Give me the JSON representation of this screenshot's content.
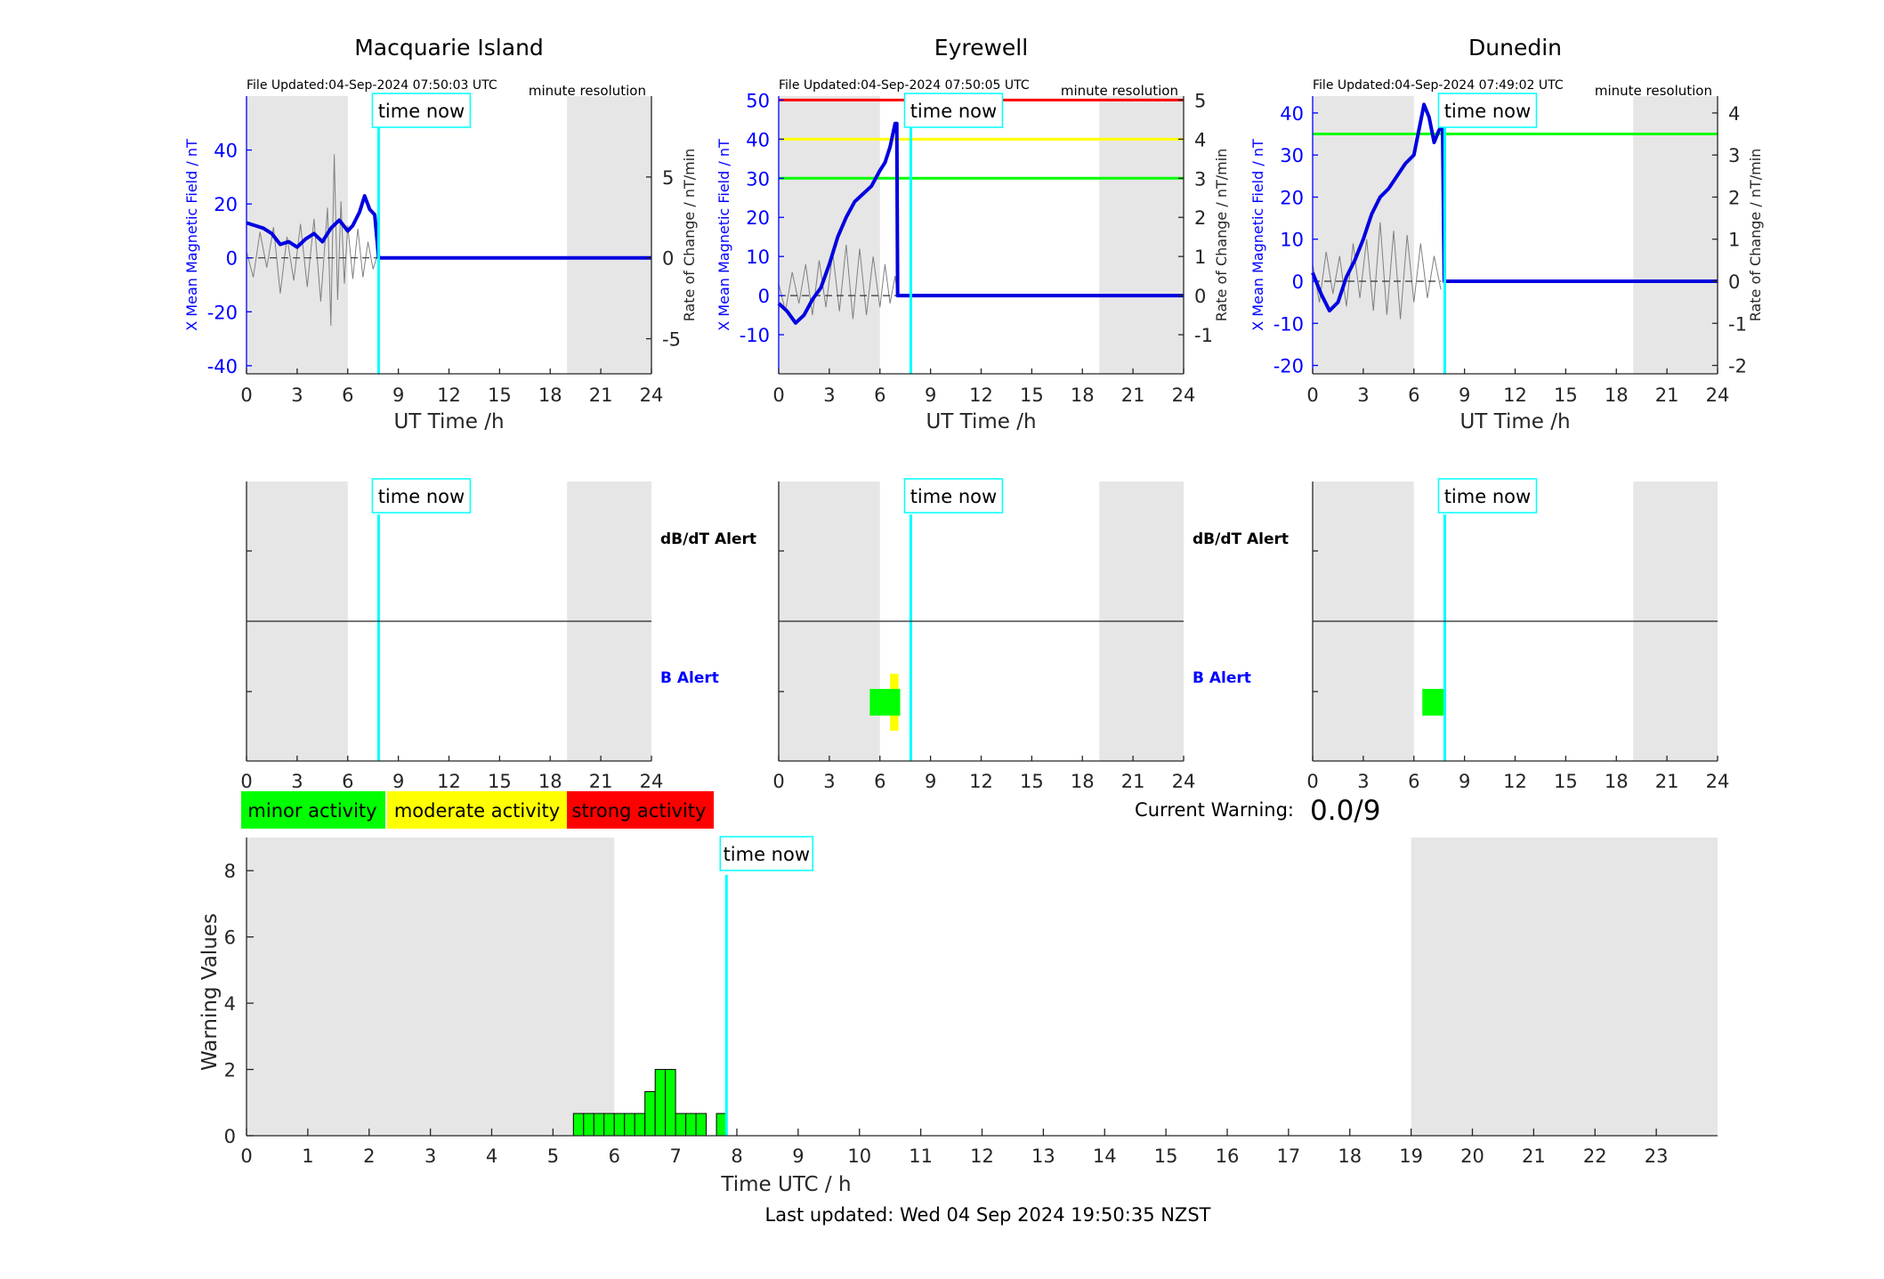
{
  "chart_data": [
    {
      "type": "line",
      "title": "Macquarie Island",
      "file_updated": "File Updated:04-Sep-2024 07:50:03 UTC",
      "resolution": "minute resolution",
      "time_now_label": "time now",
      "time_now": 7.83,
      "xlabel": "UT Time /h",
      "ylabel": "X Mean Magnetic Field / nT",
      "y2label": "Rate of Change / nT/min",
      "xlim": [
        0,
        24
      ],
      "xticks": [
        0,
        3,
        6,
        9,
        12,
        15,
        18,
        21,
        24
      ],
      "ylim": [
        -43,
        60
      ],
      "yticks": [
        -40,
        -20,
        0,
        20,
        40
      ],
      "y2lim": [
        -7.17,
        10
      ],
      "y2ticks": [
        -5,
        0,
        5
      ],
      "night_shading": [
        [
          0,
          6
        ],
        [
          19,
          24
        ]
      ],
      "thresholds": [],
      "series": [
        {
          "role": "field",
          "color": "#0000e0",
          "x": [
            0,
            0.5,
            1,
            1.5,
            2,
            2.5,
            3,
            3.5,
            4,
            4.5,
            5,
            5.5,
            6,
            6.3,
            6.7,
            7,
            7.3,
            7.6,
            7.83,
            8,
            24
          ],
          "y": [
            13,
            12,
            11,
            9,
            5,
            6,
            4,
            7,
            9,
            6,
            11,
            14,
            10,
            12,
            17,
            23,
            18,
            16,
            0,
            0,
            0
          ]
        },
        {
          "role": "rate",
          "color": "#808080",
          "x": [
            0,
            0.4,
            0.8,
            1.2,
            1.6,
            2,
            2.4,
            2.8,
            3.2,
            3.6,
            4,
            4.4,
            4.8,
            5.0,
            5.2,
            5.4,
            5.6,
            5.8,
            6,
            6.3,
            6.6,
            6.9,
            7.2,
            7.5,
            7.8
          ],
          "y": [
            0.4,
            -1.2,
            1.6,
            -0.6,
            1.9,
            -2.2,
            1.3,
            -1.4,
            2.1,
            -1.8,
            2.4,
            -2.7,
            3.1,
            -4.2,
            6.4,
            -2.6,
            3.5,
            -1.6,
            2.0,
            -1.3,
            1.8,
            -1.2,
            1.0,
            -0.7,
            0.3
          ]
        }
      ]
    },
    {
      "type": "line",
      "title": "Eyrewell",
      "file_updated": "File Updated:04-Sep-2024 07:50:05 UTC",
      "resolution": "minute resolution",
      "time_now_label": "time now",
      "time_now": 7.83,
      "xlabel": "UT Time /h",
      "ylabel": "X Mean Magnetic Field / nT",
      "y2label": "Rate of Change / nT/min",
      "xlim": [
        0,
        24
      ],
      "xticks": [
        0,
        3,
        6,
        9,
        12,
        15,
        18,
        21,
        24
      ],
      "ylim": [
        -20,
        51
      ],
      "yticks": [
        -10,
        0,
        10,
        20,
        30,
        40,
        50
      ],
      "y2lim": [
        -2,
        5.1
      ],
      "y2ticks": [
        -1,
        0,
        1,
        2,
        3,
        4,
        5
      ],
      "night_shading": [
        [
          0,
          6
        ],
        [
          19,
          24
        ]
      ],
      "thresholds": [
        {
          "value": 50,
          "color": "#ff0000"
        },
        {
          "value": 40,
          "color": "#ffff00"
        },
        {
          "value": 30,
          "color": "#00ff00"
        }
      ],
      "series": [
        {
          "role": "field",
          "color": "#0000e0",
          "x": [
            0,
            0.5,
            1,
            1.5,
            2,
            2.5,
            3,
            3.5,
            4,
            4.5,
            5,
            5.5,
            6,
            6.3,
            6.6,
            6.9,
            7.0,
            7.05,
            24
          ],
          "y": [
            -2,
            -4,
            -7,
            -5,
            -1,
            2,
            8,
            15,
            20,
            24,
            26,
            28,
            32,
            34,
            38,
            44,
            44,
            0,
            0
          ]
        },
        {
          "role": "rate",
          "color": "#808080",
          "x": [
            0,
            0.4,
            0.8,
            1.2,
            1.6,
            2,
            2.4,
            2.8,
            3.2,
            3.6,
            4,
            4.4,
            4.8,
            5.2,
            5.6,
            6,
            6.3,
            6.6,
            6.9,
            7.0
          ],
          "y": [
            0.3,
            -0.4,
            0.6,
            -0.2,
            0.8,
            -0.5,
            0.9,
            -0.3,
            1.1,
            -0.4,
            1.3,
            -0.6,
            1.2,
            -0.5,
            1.0,
            -0.3,
            0.8,
            -0.2,
            0.5,
            0.1
          ]
        }
      ]
    },
    {
      "type": "line",
      "title": "Dunedin",
      "file_updated": "File Updated:04-Sep-2024 07:49:02 UTC",
      "resolution": "minute resolution",
      "time_now_label": "time now",
      "time_now": 7.83,
      "xlabel": "UT Time /h",
      "ylabel": "X Mean Magnetic Field / nT",
      "y2label": "Rate of Change / nT/min",
      "xlim": [
        0,
        24
      ],
      "xticks": [
        0,
        3,
        6,
        9,
        12,
        15,
        18,
        21,
        24
      ],
      "ylim": [
        -22,
        44
      ],
      "yticks": [
        -20,
        -10,
        0,
        10,
        20,
        30,
        40
      ],
      "y2lim": [
        -2.2,
        4.4
      ],
      "y2ticks": [
        -2,
        -1,
        0,
        1,
        2,
        3,
        4
      ],
      "night_shading": [
        [
          0,
          6
        ],
        [
          19,
          24
        ]
      ],
      "thresholds": [
        {
          "value": 35,
          "color": "#00ff00"
        }
      ],
      "series": [
        {
          "role": "field",
          "color": "#0000e0",
          "x": [
            0,
            0.5,
            1,
            1.5,
            2,
            2.5,
            3,
            3.5,
            4,
            4.5,
            5,
            5.5,
            6,
            6.3,
            6.6,
            6.9,
            7.2,
            7.5,
            7.7,
            7.8,
            24
          ],
          "y": [
            2,
            -3,
            -7,
            -5,
            1,
            5,
            10,
            16,
            20,
            22,
            25,
            28,
            30,
            36,
            42,
            39,
            33,
            36,
            37,
            0,
            0
          ]
        },
        {
          "role": "rate",
          "color": "#808080",
          "x": [
            0,
            0.4,
            0.8,
            1.2,
            1.6,
            2,
            2.4,
            2.8,
            3.2,
            3.6,
            4,
            4.4,
            4.8,
            5.2,
            5.6,
            6,
            6.4,
            6.8,
            7.2,
            7.6
          ],
          "y": [
            0.4,
            -0.5,
            0.7,
            -0.3,
            0.6,
            -0.6,
            0.9,
            -0.4,
            1.0,
            -0.7,
            1.4,
            -0.8,
            1.2,
            -0.9,
            1.1,
            -0.5,
            0.9,
            -0.4,
            0.6,
            -0.2
          ]
        }
      ]
    },
    {
      "type": "bar",
      "panel": "alert",
      "station": "Macquarie Island",
      "time_now_label": "time now",
      "time_now": 7.83,
      "xlim": [
        0,
        24
      ],
      "xticks": [
        0,
        3,
        6,
        9,
        12,
        15,
        18,
        21,
        24
      ],
      "night_shading": [
        [
          0,
          6
        ],
        [
          19,
          24
        ]
      ],
      "row_labels": [
        {
          "text": "dB/dT Alert",
          "color": "#000000"
        },
        {
          "text": "B Alert",
          "color": "#0000ff"
        }
      ],
      "bars": []
    },
    {
      "type": "bar",
      "panel": "alert",
      "station": "Eyrewell",
      "time_now_label": "time now",
      "time_now": 7.83,
      "xlim": [
        0,
        24
      ],
      "xticks": [
        0,
        3,
        6,
        9,
        12,
        15,
        18,
        21,
        24
      ],
      "night_shading": [
        [
          0,
          6
        ],
        [
          19,
          24
        ]
      ],
      "row_labels": [
        {
          "text": "dB/dT Alert",
          "color": "#000000"
        },
        {
          "text": "B Alert",
          "color": "#0000ff"
        }
      ],
      "bars": [
        {
          "row": "B Alert",
          "start": 6.6,
          "end": 7.1,
          "level": "moderate",
          "color": "#ffff00",
          "tall": true
        },
        {
          "row": "B Alert",
          "start": 5.4,
          "end": 7.2,
          "level": "minor",
          "color": "#00ff00",
          "tall": false
        }
      ]
    },
    {
      "type": "bar",
      "panel": "alert",
      "station": "Dunedin",
      "time_now_label": "time now",
      "time_now": 7.83,
      "xlim": [
        0,
        24
      ],
      "xticks": [
        0,
        3,
        6,
        9,
        12,
        15,
        18,
        21,
        24
      ],
      "night_shading": [
        [
          0,
          6
        ],
        [
          19,
          24
        ]
      ],
      "row_labels": [],
      "bars": [
        {
          "row": "B Alert",
          "start": 6.5,
          "end": 7.9,
          "level": "minor",
          "color": "#00ff00",
          "tall": false
        }
      ]
    },
    {
      "type": "bar",
      "panel": "warning",
      "time_now_label": "time now",
      "time_now": 7.83,
      "xlabel": "Time UTC / h",
      "ylabel": "Warning Values",
      "xlim": [
        0,
        24
      ],
      "xticks": [
        0,
        1,
        2,
        3,
        4,
        5,
        6,
        7,
        8,
        9,
        10,
        11,
        12,
        13,
        14,
        15,
        16,
        17,
        18,
        19,
        20,
        21,
        22,
        23
      ],
      "ylim": [
        0,
        9
      ],
      "yticks": [
        0,
        2,
        4,
        6,
        8
      ],
      "night_shading": [
        [
          0,
          6
        ],
        [
          19,
          24
        ]
      ],
      "bar_width": 0.1667,
      "color": "#00ff00",
      "x": [
        5.333,
        5.5,
        5.667,
        5.833,
        6.0,
        6.167,
        6.333,
        6.5,
        6.667,
        6.833,
        7.0,
        7.167,
        7.333,
        7.667
      ],
      "values": [
        0.67,
        0.67,
        0.67,
        0.67,
        0.67,
        0.67,
        0.67,
        1.33,
        2.0,
        2.0,
        0.67,
        0.67,
        0.67,
        0.67
      ]
    }
  ],
  "legend": {
    "items": [
      {
        "label": "minor activity",
        "color": "#00ff00"
      },
      {
        "label": "moderate activity",
        "color": "#ffff00"
      },
      {
        "label": "strong activity",
        "color": "#ff0000"
      }
    ]
  },
  "warning": {
    "label": "Current Warning:",
    "value": "0.0/9"
  },
  "footer": {
    "last_updated": "Last updated: Wed 04 Sep 2024 19:50:35 NZST"
  }
}
